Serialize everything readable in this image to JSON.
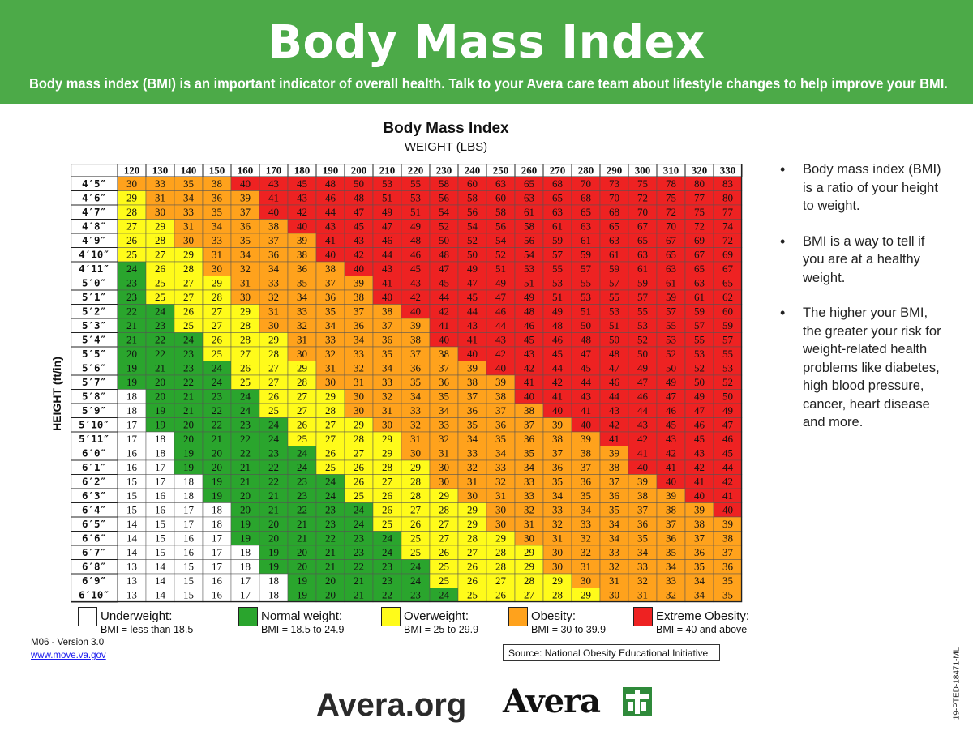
{
  "banner": {
    "title": "Body Mass Index",
    "subtitle": "Body mass index (BMI) is an important indicator of overall health. Talk to your Avera care team about lifestyle changes to help improve your BMI."
  },
  "chart_data": {
    "type": "table",
    "title": "Body Mass Index",
    "xlabel": "WEIGHT (LBS)",
    "ylabel": "HEIGHT (ft/in)",
    "weights": [
      120,
      130,
      140,
      150,
      160,
      170,
      180,
      190,
      200,
      210,
      220,
      230,
      240,
      250,
      260,
      270,
      280,
      290,
      300,
      310,
      320,
      330
    ],
    "heights": [
      "4′5″",
      "4′6″",
      "4′7″",
      "4′8″",
      "4′9″",
      "4′10″",
      "4′11″",
      "5′0″",
      "5′1″",
      "5′2″",
      "5′3″",
      "5′4″",
      "5′5″",
      "5′6″",
      "5′7″",
      "5′8″",
      "5′9″",
      "5′10″",
      "5′11″",
      "6′0″",
      "6′1″",
      "6′2″",
      "6′3″",
      "6′4″",
      "6′5″",
      "6′6″",
      "6′7″",
      "6′8″",
      "6′9″",
      "6′10″"
    ],
    "values": [
      [
        30,
        33,
        35,
        38,
        40,
        43,
        45,
        48,
        50,
        53,
        55,
        58,
        60,
        63,
        65,
        68,
        70,
        73,
        75,
        78,
        80,
        83
      ],
      [
        29,
        31,
        34,
        36,
        39,
        41,
        43,
        46,
        48,
        51,
        53,
        56,
        58,
        60,
        63,
        65,
        68,
        70,
        72,
        75,
        77,
        80
      ],
      [
        28,
        30,
        33,
        35,
        37,
        40,
        42,
        44,
        47,
        49,
        51,
        54,
        56,
        58,
        61,
        63,
        65,
        68,
        70,
        72,
        75,
        77
      ],
      [
        27,
        29,
        31,
        34,
        36,
        38,
        40,
        43,
        45,
        47,
        49,
        52,
        54,
        56,
        58,
        61,
        63,
        65,
        67,
        70,
        72,
        74
      ],
      [
        26,
        28,
        30,
        33,
        35,
        37,
        39,
        41,
        43,
        46,
        48,
        50,
        52,
        54,
        56,
        59,
        61,
        63,
        65,
        67,
        69,
        72
      ],
      [
        25,
        27,
        29,
        31,
        34,
        36,
        38,
        40,
        42,
        44,
        46,
        48,
        50,
        52,
        54,
        57,
        59,
        61,
        63,
        65,
        67,
        69
      ],
      [
        24,
        26,
        28,
        30,
        32,
        34,
        36,
        38,
        40,
        43,
        45,
        47,
        49,
        51,
        53,
        55,
        57,
        59,
        61,
        63,
        65,
        67
      ],
      [
        23,
        25,
        27,
        29,
        31,
        33,
        35,
        37,
        39,
        41,
        43,
        45,
        47,
        49,
        51,
        53,
        55,
        57,
        59,
        61,
        63,
        65
      ],
      [
        23,
        25,
        27,
        28,
        30,
        32,
        34,
        36,
        38,
        40,
        42,
        44,
        45,
        47,
        49,
        51,
        53,
        55,
        57,
        59,
        61,
        62
      ],
      [
        22,
        24,
        26,
        27,
        29,
        31,
        33,
        35,
        37,
        38,
        40,
        42,
        44,
        46,
        48,
        49,
        51,
        53,
        55,
        57,
        59,
        60
      ],
      [
        21,
        23,
        25,
        27,
        28,
        30,
        32,
        34,
        36,
        37,
        39,
        41,
        43,
        44,
        46,
        48,
        50,
        51,
        53,
        55,
        57,
        59
      ],
      [
        21,
        22,
        24,
        26,
        28,
        29,
        31,
        33,
        34,
        36,
        38,
        40,
        41,
        43,
        45,
        46,
        48,
        50,
        52,
        53,
        55,
        57
      ],
      [
        20,
        22,
        23,
        25,
        27,
        28,
        30,
        32,
        33,
        35,
        37,
        38,
        40,
        42,
        43,
        45,
        47,
        48,
        50,
        52,
        53,
        55
      ],
      [
        19,
        21,
        23,
        24,
        26,
        27,
        29,
        31,
        32,
        34,
        36,
        37,
        39,
        40,
        42,
        44,
        45,
        47,
        49,
        50,
        52,
        53
      ],
      [
        19,
        20,
        22,
        24,
        25,
        27,
        28,
        30,
        31,
        33,
        35,
        36,
        38,
        39,
        41,
        42,
        44,
        46,
        47,
        49,
        50,
        52
      ],
      [
        18,
        20,
        21,
        23,
        24,
        26,
        27,
        29,
        30,
        32,
        34,
        35,
        37,
        38,
        40,
        41,
        43,
        44,
        46,
        47,
        49,
        50
      ],
      [
        18,
        19,
        21,
        22,
        24,
        25,
        27,
        28,
        30,
        31,
        33,
        34,
        36,
        37,
        38,
        40,
        41,
        43,
        44,
        46,
        47,
        49
      ],
      [
        17,
        19,
        20,
        22,
        23,
        24,
        26,
        27,
        29,
        30,
        32,
        33,
        35,
        36,
        37,
        39,
        40,
        42,
        43,
        45,
        46,
        47
      ],
      [
        17,
        18,
        20,
        21,
        22,
        24,
        25,
        27,
        28,
        29,
        31,
        32,
        34,
        35,
        36,
        38,
        39,
        41,
        42,
        43,
        45,
        46
      ],
      [
        16,
        18,
        19,
        20,
        22,
        23,
        24,
        26,
        27,
        29,
        30,
        31,
        33,
        34,
        35,
        37,
        38,
        39,
        41,
        42,
        43,
        45
      ],
      [
        16,
        17,
        19,
        20,
        21,
        22,
        24,
        25,
        26,
        28,
        29,
        30,
        32,
        33,
        34,
        36,
        37,
        38,
        40,
        41,
        42,
        44
      ],
      [
        15,
        17,
        18,
        19,
        21,
        22,
        23,
        24,
        26,
        27,
        28,
        30,
        31,
        32,
        33,
        35,
        36,
        37,
        39,
        40,
        41,
        42
      ],
      [
        15,
        16,
        18,
        19,
        20,
        21,
        23,
        24,
        25,
        26,
        28,
        29,
        30,
        31,
        33,
        34,
        35,
        36,
        38,
        39,
        40,
        41
      ],
      [
        15,
        16,
        17,
        18,
        20,
        21,
        22,
        23,
        24,
        26,
        27,
        28,
        29,
        30,
        32,
        33,
        34,
        35,
        37,
        38,
        39,
        40
      ],
      [
        14,
        15,
        17,
        18,
        19,
        20,
        21,
        23,
        24,
        25,
        26,
        27,
        29,
        30,
        31,
        32,
        33,
        34,
        36,
        37,
        38,
        39
      ],
      [
        14,
        15,
        16,
        17,
        19,
        20,
        21,
        22,
        23,
        24,
        25,
        27,
        28,
        29,
        30,
        31,
        32,
        34,
        35,
        36,
        37,
        38
      ],
      [
        14,
        15,
        16,
        17,
        18,
        19,
        20,
        21,
        23,
        24,
        25,
        26,
        27,
        28,
        29,
        30,
        32,
        33,
        34,
        35,
        36,
        37
      ],
      [
        13,
        14,
        15,
        17,
        18,
        19,
        20,
        21,
        22,
        23,
        24,
        25,
        26,
        28,
        29,
        30,
        31,
        32,
        33,
        34,
        35,
        36
      ],
      [
        13,
        14,
        15,
        16,
        17,
        18,
        19,
        20,
        21,
        23,
        24,
        25,
        26,
        27,
        28,
        29,
        30,
        31,
        32,
        33,
        34,
        35
      ],
      [
        13,
        14,
        15,
        16,
        17,
        18,
        19,
        20,
        21,
        22,
        23,
        24,
        25,
        26,
        27,
        28,
        29,
        30,
        31,
        32,
        34,
        35
      ]
    ],
    "categories": [
      {
        "name": "Underweight:",
        "range": "BMI = less than 18.5",
        "min": 0,
        "max": 18.5,
        "color": "#ffffff"
      },
      {
        "name": "Normal weight:",
        "range": "BMI = 18.5 to 24.9",
        "min": 18.5,
        "max": 25,
        "color": "#2aa52d"
      },
      {
        "name": "Overweight:",
        "range": "BMI = 25 to 29.9",
        "min": 25,
        "max": 30,
        "color": "#fffb1a"
      },
      {
        "name": "Obesity:",
        "range": "BMI = 30 to 39.9",
        "min": 30,
        "max": 40,
        "color": "#ffa21c"
      },
      {
        "name": "Extreme Obesity:",
        "range": "BMI = 40 and above",
        "min": 40,
        "max": 1000,
        "color": "#ee2222"
      }
    ]
  },
  "bullets": [
    "Body mass index (BMI) is a ratio of your height to weight.",
    "BMI is a way to tell if you are at a healthy weight.",
    "The higher your BMI, the greater your risk for weight-related health problems like diabetes, high blood pressure, cancer, heart disease and more."
  ],
  "footer": {
    "version": "M06 - Version 3.0",
    "website": "www.move.va.gov",
    "source": "Source: National Obesity Educational Initiative",
    "doc_code": "19-PTED-18471-ML",
    "avera_url": "Avera.org",
    "avera_logo": "Avera"
  }
}
